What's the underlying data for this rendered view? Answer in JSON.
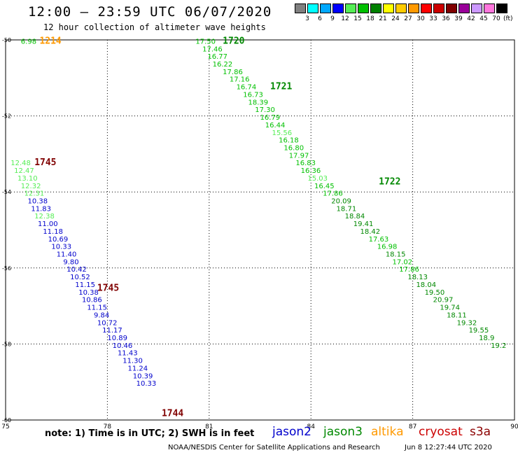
{
  "header": {
    "title": "12:00 — 23:59 UTC 06/07/2020",
    "subtitle": "12 hour collection of altimeter wave heights"
  },
  "legend": {
    "unit": "(ft)",
    "bins": [
      {
        "color": "#808080",
        "label": "3"
      },
      {
        "color": "#00ffff",
        "label": "6"
      },
      {
        "color": "#00a8ff",
        "label": "9"
      },
      {
        "color": "#0000ff",
        "label": "12"
      },
      {
        "color": "#55ee55",
        "label": "15"
      },
      {
        "color": "#00c000",
        "label": "18"
      },
      {
        "color": "#008000",
        "label": "21"
      },
      {
        "color": "#ffff00",
        "label": "24"
      },
      {
        "color": "#ffcc00",
        "label": "27"
      },
      {
        "color": "#ff9900",
        "label": "30"
      },
      {
        "color": "#ff0000",
        "label": "33"
      },
      {
        "color": "#cc0000",
        "label": "36"
      },
      {
        "color": "#800000",
        "label": "39"
      },
      {
        "color": "#990099",
        "label": "42"
      },
      {
        "color": "#cc99ff",
        "label": "45"
      },
      {
        "color": "#ff77dd",
        "label": "70"
      },
      {
        "color": "#000000",
        "label": ""
      }
    ]
  },
  "footer": {
    "note": "note: 1) Time is in UTC; 2) SWH is in feet",
    "satellites": [
      {
        "name": "jason2",
        "color": "#0000cc"
      },
      {
        "name": "jason3",
        "color": "#008800"
      },
      {
        "name": "altika",
        "color": "#ff9900"
      },
      {
        "name": "cryosat",
        "color": "#cc0000"
      },
      {
        "name": "s3a",
        "color": "#8b0000"
      }
    ],
    "credit": "NOAA/NESDIS Center for Satellite Applications and Research",
    "timestamp": "Jun  8 12:27:44 UTC 2020"
  },
  "chart_data": {
    "type": "scatter",
    "title": "12:00 — 23:59 UTC 06/07/2020",
    "xlim": [
      75,
      90
    ],
    "ylim": [
      -60,
      -50
    ],
    "x_ticks": [
      75,
      78,
      81,
      84,
      87,
      90
    ],
    "y_ticks": [
      -50,
      -52,
      -54,
      -56,
      -58,
      -60
    ],
    "x_tick_labels": [
      "75",
      "78",
      "81",
      "84",
      "87",
      "90"
    ],
    "y_tick_labels": [
      "-50",
      "-52",
      "-54",
      "-56",
      "-58",
      "-60"
    ],
    "grid": true,
    "time_labels": [
      {
        "text": "1214",
        "x": 76.0,
        "y": -50.1,
        "color": "#ff9900"
      },
      {
        "text": "1720",
        "x": 81.4,
        "y": -50.1,
        "color": "#008800"
      },
      {
        "text": "1721",
        "x": 82.8,
        "y": -51.3,
        "color": "#008800"
      },
      {
        "text": "1722",
        "x": 86.0,
        "y": -53.8,
        "color": "#008800"
      },
      {
        "text": "1745",
        "x": 75.85,
        "y": -53.3,
        "color": "#800000"
      },
      {
        "text": "1745",
        "x": 77.7,
        "y": -56.6,
        "color": "#800000"
      },
      {
        "text": "1744",
        "x": 79.6,
        "y": -59.9,
        "color": "#800000"
      }
    ],
    "series": [
      {
        "name": "altika",
        "color": "#ff9900",
        "points": [
          {
            "x": 75.45,
            "y": -50.1,
            "v": "6.98",
            "c": "#00c000"
          }
        ]
      },
      {
        "name": "jason3",
        "color": "#008800",
        "points": [
          {
            "x": 80.6,
            "y": -50.1,
            "v": "17.50",
            "c": "#00c000"
          },
          {
            "x": 80.8,
            "y": -50.3,
            "v": "17.46",
            "c": "#00c000"
          },
          {
            "x": 80.95,
            "y": -50.5,
            "v": "16.77",
            "c": "#00c000"
          },
          {
            "x": 81.1,
            "y": -50.7,
            "v": "16.22",
            "c": "#00c000"
          },
          {
            "x": 81.4,
            "y": -50.9,
            "v": "17.86",
            "c": "#00c000"
          },
          {
            "x": 81.6,
            "y": -51.1,
            "v": "17.16",
            "c": "#00c000"
          },
          {
            "x": 81.8,
            "y": -51.3,
            "v": "16.74",
            "c": "#00c000"
          },
          {
            "x": 82.0,
            "y": -51.5,
            "v": "16.73",
            "c": "#00c000"
          },
          {
            "x": 82.15,
            "y": -51.7,
            "v": "18.39",
            "c": "#00c000"
          },
          {
            "x": 82.35,
            "y": -51.9,
            "v": "17.30",
            "c": "#00c000"
          },
          {
            "x": 82.5,
            "y": -52.1,
            "v": "16.79",
            "c": "#00c000"
          },
          {
            "x": 82.65,
            "y": -52.3,
            "v": "16.44",
            "c": "#00c000"
          },
          {
            "x": 82.85,
            "y": -52.5,
            "v": "15.56",
            "c": "#55ee55"
          },
          {
            "x": 83.05,
            "y": -52.7,
            "v": "16.18",
            "c": "#00c000"
          },
          {
            "x": 83.2,
            "y": -52.9,
            "v": "16.80",
            "c": "#00c000"
          },
          {
            "x": 83.35,
            "y": -53.1,
            "v": "17.97",
            "c": "#00c000"
          },
          {
            "x": 83.55,
            "y": -53.3,
            "v": "16.83",
            "c": "#00c000"
          },
          {
            "x": 83.7,
            "y": -53.5,
            "v": "16.36",
            "c": "#00c000"
          },
          {
            "x": 83.9,
            "y": -53.7,
            "v": "15.03",
            "c": "#55ee55"
          },
          {
            "x": 84.1,
            "y": -53.9,
            "v": "16.45",
            "c": "#00c000"
          },
          {
            "x": 84.35,
            "y": -54.1,
            "v": "17.86",
            "c": "#00c000"
          },
          {
            "x": 84.6,
            "y": -54.3,
            "v": "20.09",
            "c": "#008800"
          },
          {
            "x": 84.75,
            "y": -54.5,
            "v": "18.71",
            "c": "#008800"
          },
          {
            "x": 85.0,
            "y": -54.7,
            "v": "18.84",
            "c": "#008800"
          },
          {
            "x": 85.25,
            "y": -54.9,
            "v": "19.41",
            "c": "#008800"
          },
          {
            "x": 85.45,
            "y": -55.1,
            "v": "18.42",
            "c": "#008800"
          },
          {
            "x": 85.7,
            "y": -55.3,
            "v": "17.63",
            "c": "#00c000"
          },
          {
            "x": 85.95,
            "y": -55.5,
            "v": "16.98",
            "c": "#00c000"
          },
          {
            "x": 86.2,
            "y": -55.7,
            "v": "18.15",
            "c": "#008800"
          },
          {
            "x": 86.4,
            "y": -55.9,
            "v": "17.02",
            "c": "#00c000"
          },
          {
            "x": 86.6,
            "y": -56.1,
            "v": "17.86",
            "c": "#00c000"
          },
          {
            "x": 86.85,
            "y": -56.3,
            "v": "18.13",
            "c": "#008800"
          },
          {
            "x": 87.1,
            "y": -56.5,
            "v": "18.04",
            "c": "#008800"
          },
          {
            "x": 87.35,
            "y": -56.7,
            "v": "19.50",
            "c": "#008800"
          },
          {
            "x": 87.6,
            "y": -56.9,
            "v": "20.97",
            "c": "#008800"
          },
          {
            "x": 87.8,
            "y": -57.1,
            "v": "19.74",
            "c": "#008800"
          },
          {
            "x": 88.0,
            "y": -57.3,
            "v": "18.11",
            "c": "#008800"
          },
          {
            "x": 88.3,
            "y": -57.5,
            "v": "19.32",
            "c": "#008800"
          },
          {
            "x": 88.65,
            "y": -57.7,
            "v": "19.55",
            "c": "#008800"
          },
          {
            "x": 88.95,
            "y": -57.9,
            "v": "18.9",
            "c": "#008800"
          },
          {
            "x": 89.3,
            "y": -58.1,
            "v": "19.2",
            "c": "#008800"
          }
        ]
      },
      {
        "name": "s3a",
        "color": "#8b0000",
        "points": [
          {
            "x": 75.15,
            "y": -53.3,
            "v": "12.48",
            "c": "#55ee55"
          },
          {
            "x": 75.25,
            "y": -53.5,
            "v": "12.47",
            "c": "#55ee55"
          },
          {
            "x": 75.35,
            "y": -53.7,
            "v": "13.10",
            "c": "#55ee55"
          },
          {
            "x": 75.45,
            "y": -53.9,
            "v": "12.32",
            "c": "#55ee55"
          },
          {
            "x": 75.55,
            "y": -54.1,
            "v": "12.31",
            "c": "#55ee55"
          },
          {
            "x": 75.65,
            "y": -54.3,
            "v": "10.38",
            "c": "#0000cc"
          },
          {
            "x": 75.75,
            "y": -54.5,
            "v": "11.83",
            "c": "#0000cc"
          },
          {
            "x": 75.85,
            "y": -54.7,
            "v": "12.38",
            "c": "#55ee55"
          },
          {
            "x": 75.95,
            "y": -54.9,
            "v": "11.00",
            "c": "#0000cc"
          },
          {
            "x": 76.1,
            "y": -55.1,
            "v": "11.18",
            "c": "#0000cc"
          },
          {
            "x": 76.25,
            "y": -55.3,
            "v": "10.69",
            "c": "#0000cc"
          },
          {
            "x": 76.35,
            "y": -55.5,
            "v": "10.33",
            "c": "#0000cc"
          },
          {
            "x": 76.5,
            "y": -55.7,
            "v": "11.40",
            "c": "#0000cc"
          },
          {
            "x": 76.7,
            "y": -55.9,
            "v": "9.80",
            "c": "#0000cc"
          },
          {
            "x": 76.8,
            "y": -56.1,
            "v": "10.42",
            "c": "#0000cc"
          },
          {
            "x": 76.9,
            "y": -56.3,
            "v": "10.52",
            "c": "#0000cc"
          },
          {
            "x": 77.05,
            "y": -56.5,
            "v": "11.15",
            "c": "#0000cc"
          },
          {
            "x": 77.15,
            "y": -56.7,
            "v": "10.38",
            "c": "#0000cc"
          },
          {
            "x": 77.25,
            "y": -56.9,
            "v": "10.86",
            "c": "#0000cc"
          },
          {
            "x": 77.4,
            "y": -57.1,
            "v": "11.15",
            "c": "#0000cc"
          },
          {
            "x": 77.6,
            "y": -57.3,
            "v": "9.84",
            "c": "#0000cc"
          },
          {
            "x": 77.7,
            "y": -57.5,
            "v": "10.72",
            "c": "#0000cc"
          },
          {
            "x": 77.85,
            "y": -57.7,
            "v": "11.17",
            "c": "#0000cc"
          },
          {
            "x": 78.0,
            "y": -57.9,
            "v": "10.89",
            "c": "#0000cc"
          },
          {
            "x": 78.15,
            "y": -58.1,
            "v": "10.46",
            "c": "#0000cc"
          },
          {
            "x": 78.3,
            "y": -58.3,
            "v": "11.43",
            "c": "#0000cc"
          },
          {
            "x": 78.45,
            "y": -58.5,
            "v": "11.30",
            "c": "#0000cc"
          },
          {
            "x": 78.6,
            "y": -58.7,
            "v": "11.24",
            "c": "#0000cc"
          },
          {
            "x": 78.75,
            "y": -58.9,
            "v": "10.39",
            "c": "#0000cc"
          },
          {
            "x": 78.85,
            "y": -59.1,
            "v": "10.33",
            "c": "#0000cc"
          }
        ]
      }
    ]
  }
}
